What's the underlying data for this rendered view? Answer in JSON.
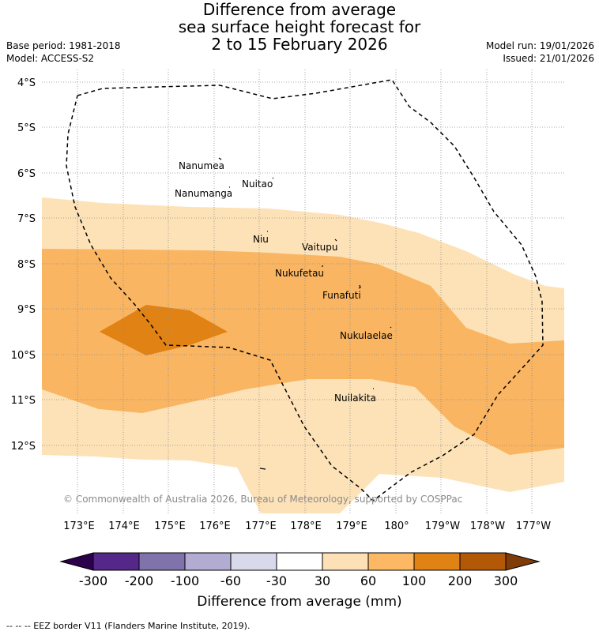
{
  "title": {
    "line1": "Difference from average",
    "line2": "sea surface height forecast for",
    "line3": "2 to 15 February 2026"
  },
  "meta": {
    "base_period": "Base period: 1981-2018",
    "model": "Model: ACCESS-S2",
    "model_run": "Model run: 19/01/2026",
    "issued": "Issued: 21/01/2026"
  },
  "map": {
    "latitude_labels": [
      "4°S",
      "5°S",
      "6°S",
      "7°S",
      "8°S",
      "9°S",
      "10°S",
      "11°S",
      "12°S"
    ],
    "longitude_labels": [
      "173°E",
      "174°E",
      "175°E",
      "176°E",
      "177°E",
      "178°E",
      "179°E",
      "180°",
      "179°W",
      "178°W",
      "177°W"
    ],
    "islands": [
      "Nanumea",
      "Nuitao",
      "Nanumanga",
      "Niu",
      "Vaitupu",
      "Nukufetau",
      "Funafuti",
      "Nukulaelae",
      "Nuilakita"
    ],
    "copyright": "© Commonwealth of Australia 2026, Bureau of Meteorology, supported by COSPPac",
    "colors": {
      "band_30_60": "#fde2b8",
      "band_60_100": "#f9b562",
      "band_100_200": "#e08214",
      "eez_line": "#000000"
    }
  },
  "colorbar": {
    "ticks": [
      "-300",
      "-200",
      "-100",
      "-60",
      "-30",
      "30",
      "60",
      "100",
      "200",
      "300"
    ],
    "colors": [
      "#2d004b",
      "#542788",
      "#8073ac",
      "#b2abd2",
      "#d8daeb",
      "#ffffff",
      "#fee0b6",
      "#fdb863",
      "#e08214",
      "#b35806",
      "#7f3b08"
    ],
    "title": "Difference from average (mm)"
  },
  "legend": {
    "eez_text": "--  --  -- EEZ border V11 (Flanders Marine Institute, 2019)."
  }
}
